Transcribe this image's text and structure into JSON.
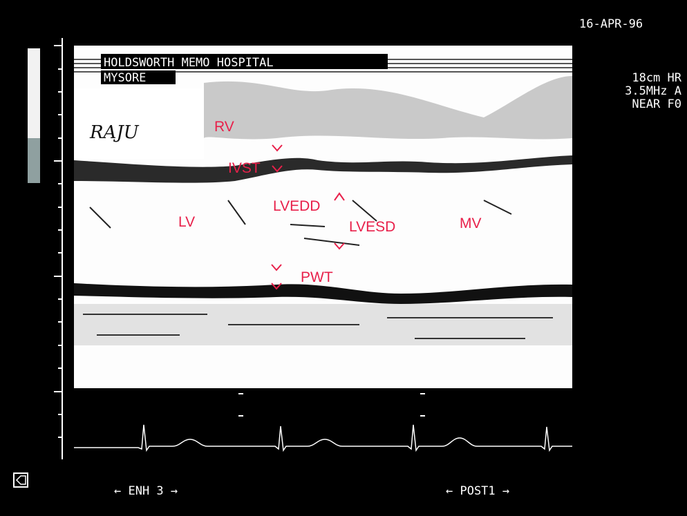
{
  "header": {
    "date": "16-APR-96",
    "hospital": "HOLDSWORTH MEMO HOSPITAL",
    "location": "MYSORE"
  },
  "patient": {
    "name": "RAJU"
  },
  "settings": [
    "18cm HR",
    "3.5MHz  A",
    "NEAR F0"
  ],
  "annotations": {
    "rv": "RV",
    "ivst": "IVST",
    "lvedd": "LVEDD",
    "lvesd": "LVESD",
    "lv": "LV",
    "mv": "MV",
    "pwt": "PWT"
  },
  "footer": {
    "left": "←  ENH 3  →",
    "right": "←  POST1  →"
  }
}
